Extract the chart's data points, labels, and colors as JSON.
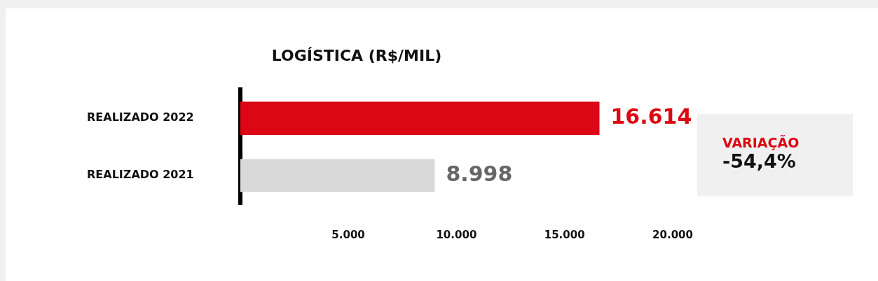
{
  "chart_data": {
    "type": "bar",
    "orientation": "horizontal",
    "title": "LOGÍSTICA (R$/MIL)",
    "categories": [
      "REALIZADO 2022",
      "REALIZADO 2021"
    ],
    "values": [
      16614,
      8998
    ],
    "colors": [
      "#dc0714",
      "#d9d9d9"
    ],
    "value_labels": [
      "16.614",
      "8.998"
    ],
    "xlim": [
      0,
      20000
    ],
    "xticks": [
      {
        "value": 5000,
        "label": "5.000"
      },
      {
        "value": 10000,
        "label": "10.000"
      },
      {
        "value": 15000,
        "label": "15.000"
      },
      {
        "value": 20000,
        "label": "20.000"
      }
    ],
    "grid": false,
    "legend": false,
    "annotations": [
      "VARIAÇÃO",
      "-54,4%"
    ]
  }
}
